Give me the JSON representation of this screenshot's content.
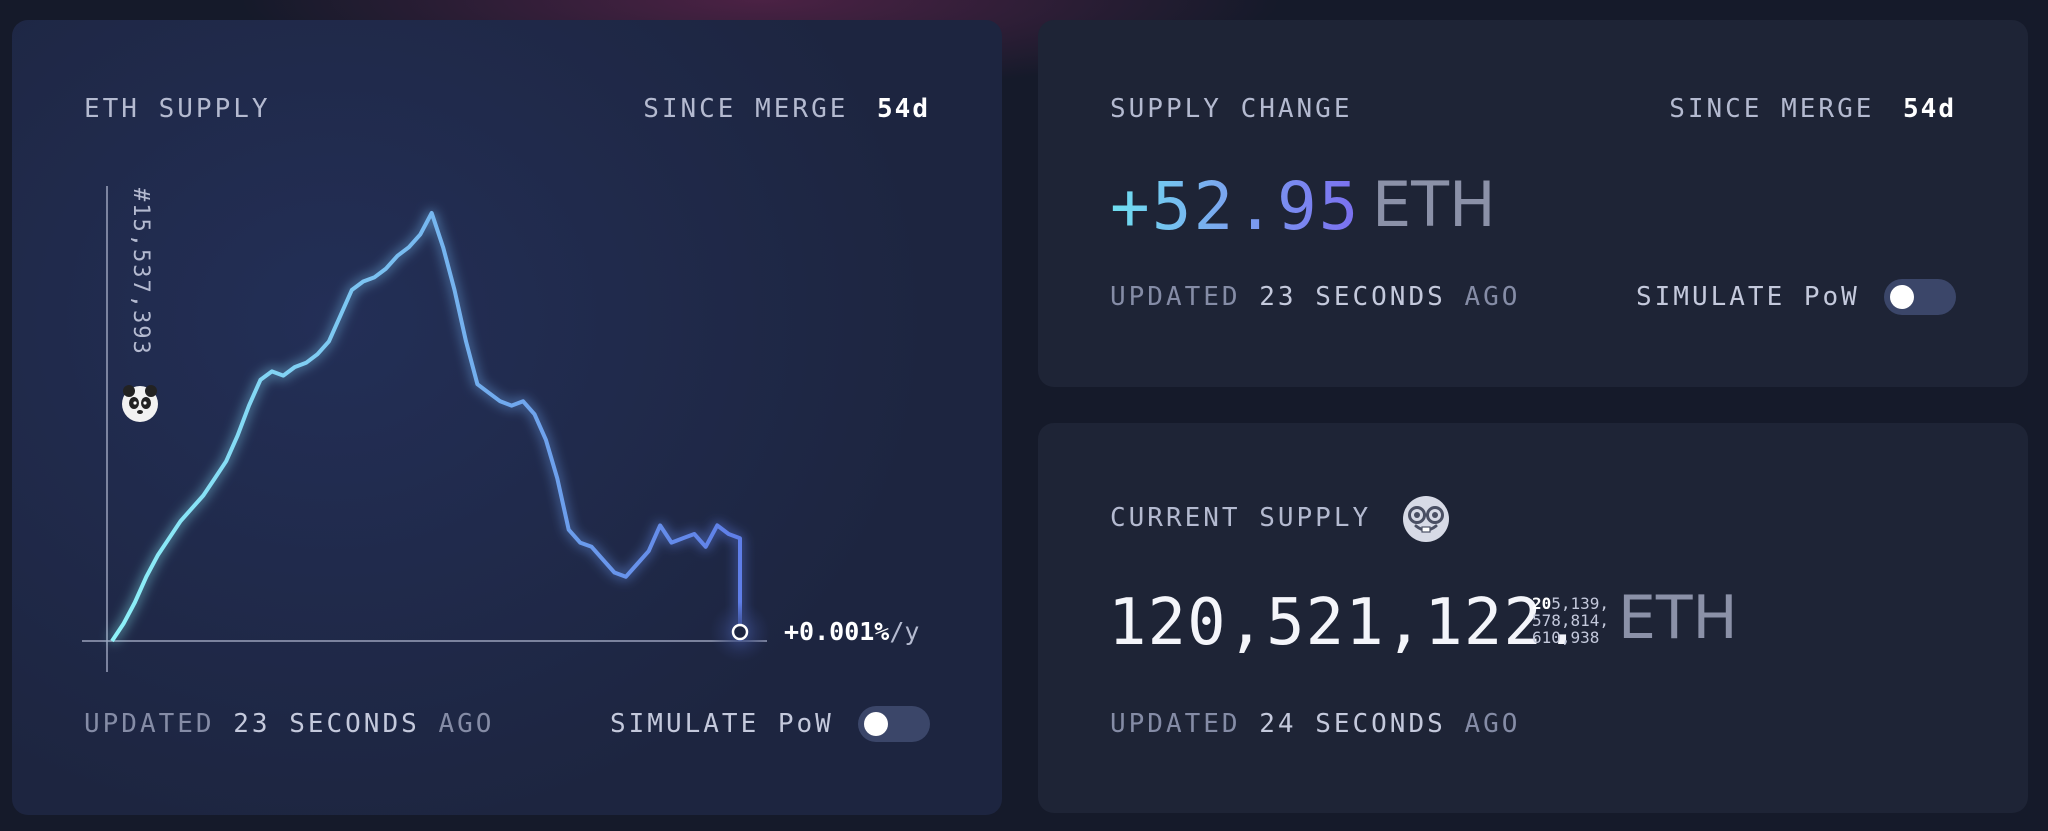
{
  "eth_supply_card": {
    "title": "ETH SUPPLY",
    "since_label": "SINCE MERGE",
    "since_value": "54d",
    "block_label": "#15,537,393",
    "rate_label": "+0.001%",
    "rate_unit": "/y",
    "updated_prefix": "UPDATED",
    "updated_value": "23 SECONDS",
    "updated_suffix": "AGO",
    "simulate_label": "SIMULATE PoW",
    "merge_marker_icon": "panda-icon"
  },
  "supply_change_card": {
    "title": "SUPPLY CHANGE",
    "since_label": "SINCE MERGE",
    "since_value": "54d",
    "value": "+52.95",
    "unit": "ETH",
    "updated_prefix": "UPDATED",
    "updated_value": "23 SECONDS",
    "updated_suffix": "AGO",
    "simulate_label": "SIMULATE PoW"
  },
  "current_supply_card": {
    "title": "CURRENT SUPPLY",
    "title_icon": "nerd-face-icon",
    "integer_part": "120,521,122.",
    "decimal_first": "20",
    "decimal_line1_rest": "5,139,",
    "decimal_line2": "578,814,",
    "decimal_line3": "610,938",
    "unit": "ETH",
    "updated_prefix": "UPDATED",
    "updated_value": "24 SECONDS",
    "updated_suffix": "AGO"
  },
  "chart_data": {
    "type": "line",
    "title": "ETH SUPPLY",
    "series": [
      {
        "values": [
          0,
          4,
          9,
          15,
          20,
          24,
          28,
          31,
          34,
          38,
          42,
          48,
          55,
          61,
          63,
          62,
          64,
          65,
          67,
          70,
          76,
          82,
          84,
          85,
          87,
          90,
          92,
          95,
          100,
          92,
          82,
          70,
          60,
          58,
          56,
          55,
          56,
          53,
          47,
          38,
          26,
          23,
          22,
          19,
          16,
          15,
          18,
          21,
          27,
          23,
          24,
          25,
          22,
          27,
          25,
          24,
          0
        ]
      }
    ],
    "annotations": [
      "#15,537,393",
      "+0.001%/y"
    ],
    "colors": {
      "line_start": "#8ef2f8",
      "line_end": "#5f7ee8",
      "axis": "#9aa1bb"
    },
    "grid": false
  },
  "colors": {
    "background": "#151a2a",
    "card": "#1e2436",
    "toggle_track": "#3b4669",
    "muted_text": "#858ca6"
  }
}
